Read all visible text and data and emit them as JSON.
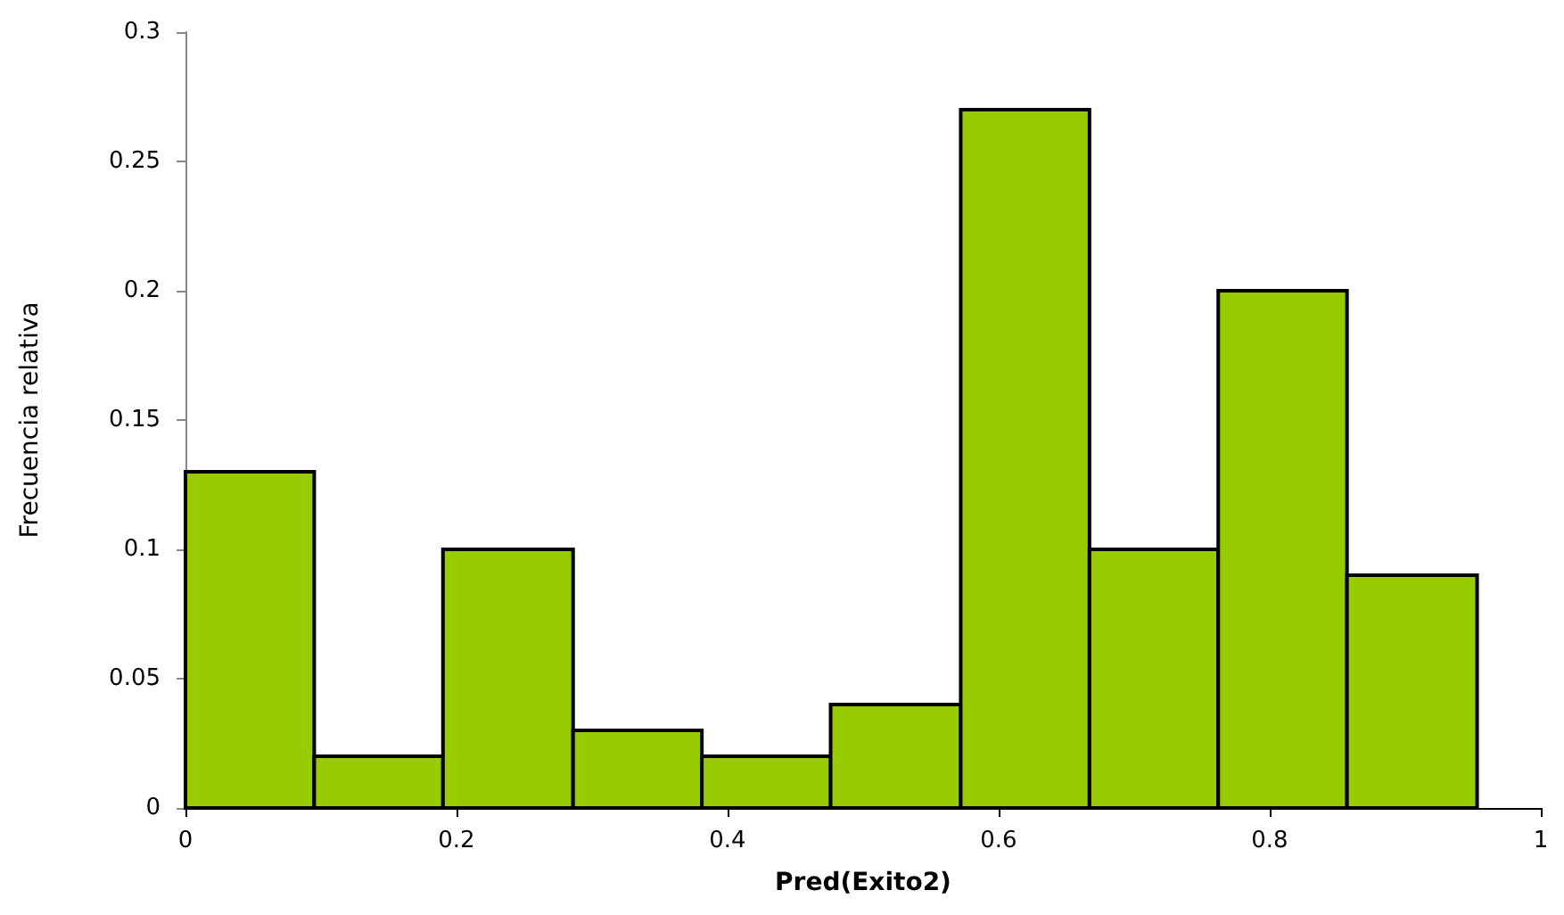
{
  "chart_data": {
    "type": "histogram",
    "xlabel": "Pred(Exito2)",
    "ylabel": "Frecuencia relativa",
    "bins": [
      0,
      0.095,
      0.19,
      0.286,
      0.381,
      0.476,
      0.572,
      0.667,
      0.762,
      0.857,
      0.953
    ],
    "values": [
      0.13,
      0.02,
      0.1,
      0.03,
      0.02,
      0.04,
      0.27,
      0.1,
      0.2,
      0.09
    ],
    "color": "#99cc00",
    "xlim": [
      0,
      1
    ],
    "xticks": [
      0,
      0.2,
      0.4,
      0.6,
      0.8,
      1
    ],
    "ylim": [
      0,
      0.3
    ],
    "yticks": [
      0,
      0.05,
      0.1,
      0.15,
      0.2,
      0.25,
      0.3
    ],
    "grid": false,
    "legend": false
  }
}
